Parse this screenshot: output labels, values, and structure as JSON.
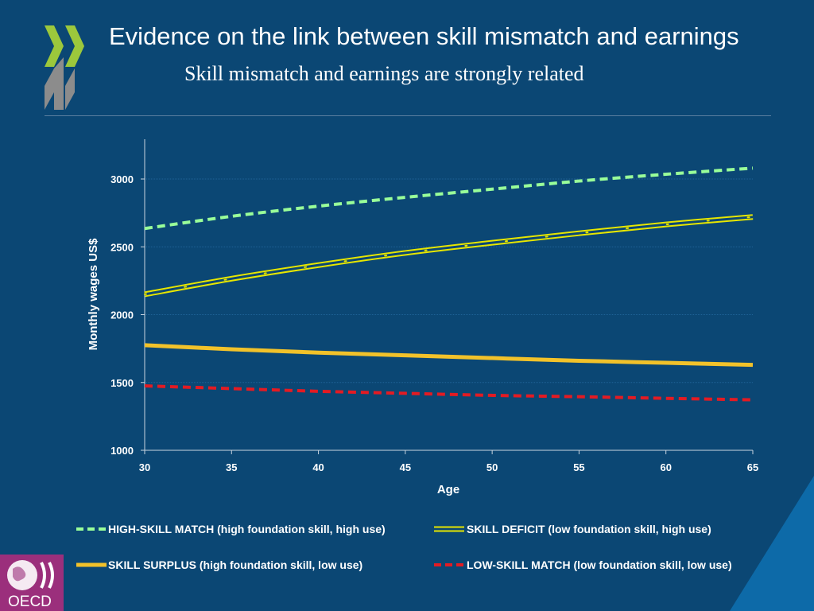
{
  "slide": {
    "title": "Evidence on the link between skill mismatch and earnings",
    "subtitle": "Skill mismatch and earnings are strongly related",
    "logo_text": "OECD",
    "colors": {
      "background": "#0b4774",
      "logo_purple": "#9b2f7c",
      "chevron_green": "#9cc83c",
      "chevron_gray": "#8c8c8c"
    }
  },
  "chart_data": {
    "type": "line",
    "xlabel": "Age",
    "ylabel": "Monthly wages US$",
    "xlim": [
      30,
      65
    ],
    "ylim": [
      1000,
      3000
    ],
    "x_ticks": [
      30,
      35,
      40,
      45,
      50,
      55,
      60,
      65
    ],
    "y_ticks": [
      1000,
      1500,
      2000,
      2500,
      3000
    ],
    "grid": "horizontal",
    "legend_placement": "bottom",
    "x": [
      30,
      35,
      40,
      45,
      50,
      55,
      60,
      65
    ],
    "series": [
      {
        "name": "HIGH-SKILL MATCH (high foundation skill, high use)",
        "color": "#99ff99",
        "style": "dashed",
        "values": [
          2635,
          2725,
          2800,
          2865,
          2925,
          2985,
          3035,
          3080
        ]
      },
      {
        "name": "SKILL DEFICIT (low foundation skill, high use)",
        "color": "#e6e600",
        "style": "double",
        "values": [
          2150,
          2265,
          2365,
          2455,
          2530,
          2600,
          2665,
          2720
        ]
      },
      {
        "name": "SKILL SURPLUS (high foundation skill, low use)",
        "color": "#f2c22a",
        "style": "solid",
        "values": [
          1775,
          1745,
          1720,
          1700,
          1680,
          1660,
          1645,
          1630
        ]
      },
      {
        "name": "LOW-SKILL MATCH (low foundation skill, low use)",
        "color": "#e31b23",
        "style": "dashed",
        "values": [
          1475,
          1455,
          1435,
          1420,
          1405,
          1395,
          1383,
          1372
        ]
      }
    ]
  }
}
